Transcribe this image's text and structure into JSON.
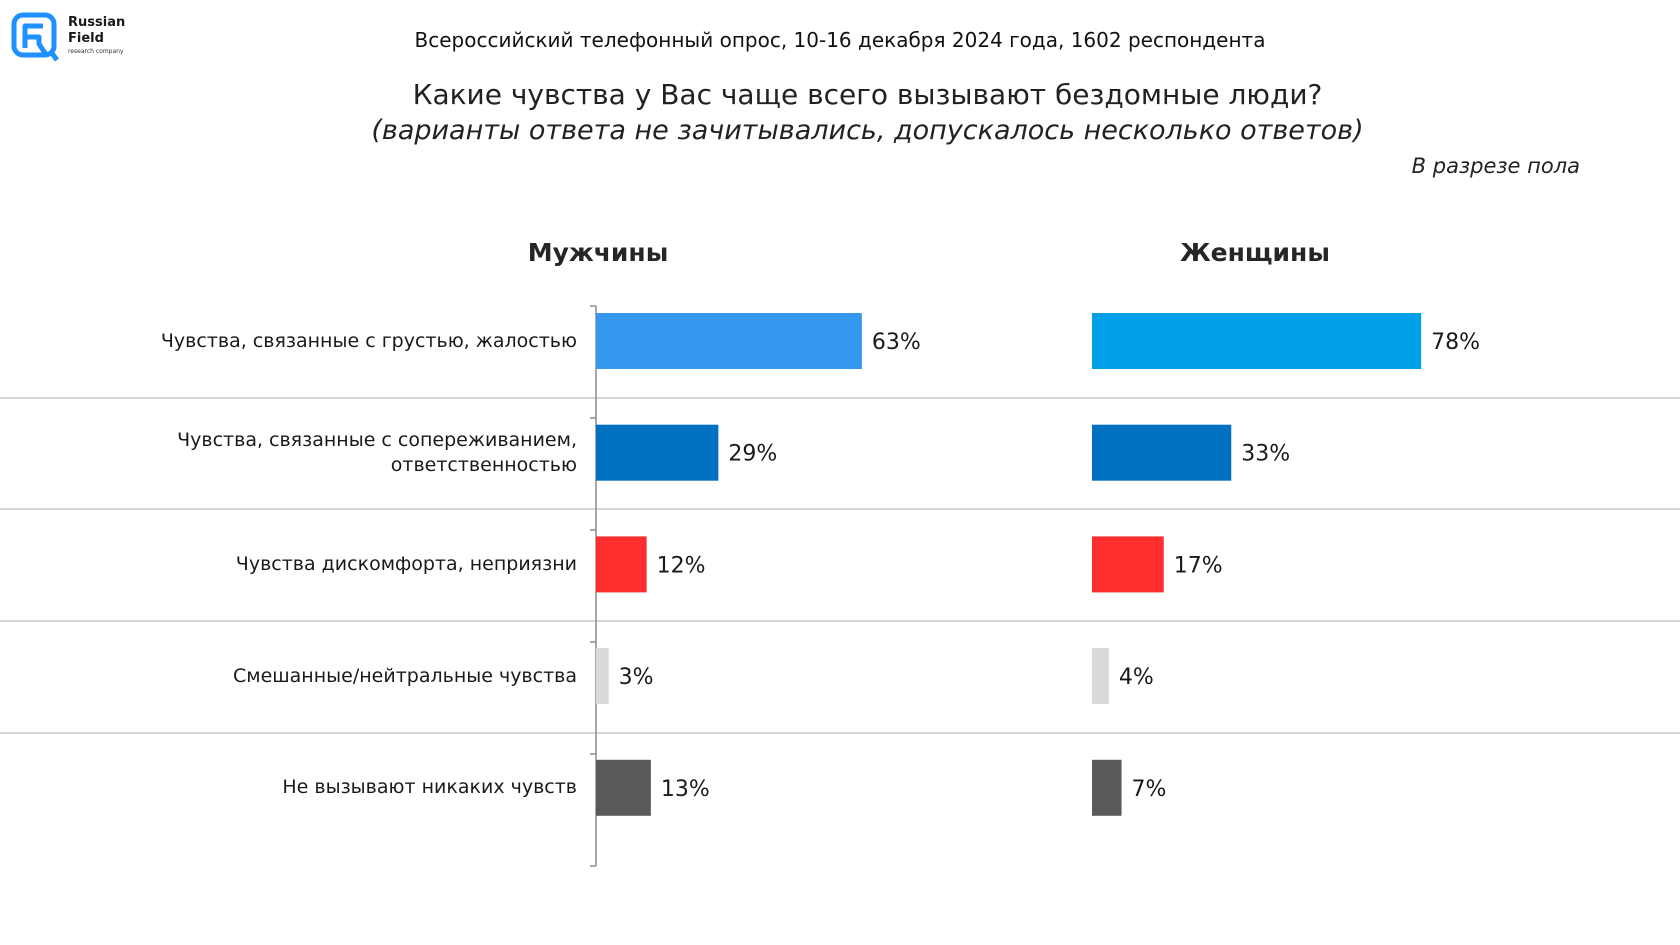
{
  "logo": {
    "name_line1": "Russian",
    "name_line2": "Field",
    "tagline": "research company"
  },
  "header": {
    "survey": "Всероссийский телефонный опрос, 10-16 декабря 2024 года, 1602 респондента",
    "question": "Какие чувства у Вас чаще всего вызывают бездомные люди?",
    "question_note": "(варианты ответа не зачитывались, допускалось несколько ответов)",
    "breakdown": "В разрезе пола"
  },
  "chart_data": {
    "type": "bar",
    "orientation": "horizontal",
    "categories": [
      "Чувства, связанные с грустью, жалостью",
      "Чувства, связанные с сопереживанием, ответственностью",
      "Чувства дискомфорта, неприязни",
      "Смешанные/нейтральные чувства",
      "Не вызывают никаких чувств"
    ],
    "series": [
      {
        "name": "Мужчины",
        "values": [
          63,
          29,
          12,
          3,
          13
        ],
        "labels": [
          "63%",
          "29%",
          "12%",
          "3%",
          "13%"
        ],
        "colors": [
          "#3598EE",
          "#0070C0",
          "#FF2E2E",
          "#D9D9D9",
          "#595959"
        ]
      },
      {
        "name": "Женщины",
        "values": [
          78,
          33,
          17,
          4,
          7
        ],
        "labels": [
          "78%",
          "33%",
          "17%",
          "4%",
          "7%"
        ],
        "colors": [
          "#00A0E9",
          "#0070C0",
          "#FF2E2E",
          "#D9D9D9",
          "#595959"
        ]
      }
    ],
    "unit": "%",
    "xlim": [
      0,
      100
    ],
    "grid": false,
    "legend": "none"
  }
}
